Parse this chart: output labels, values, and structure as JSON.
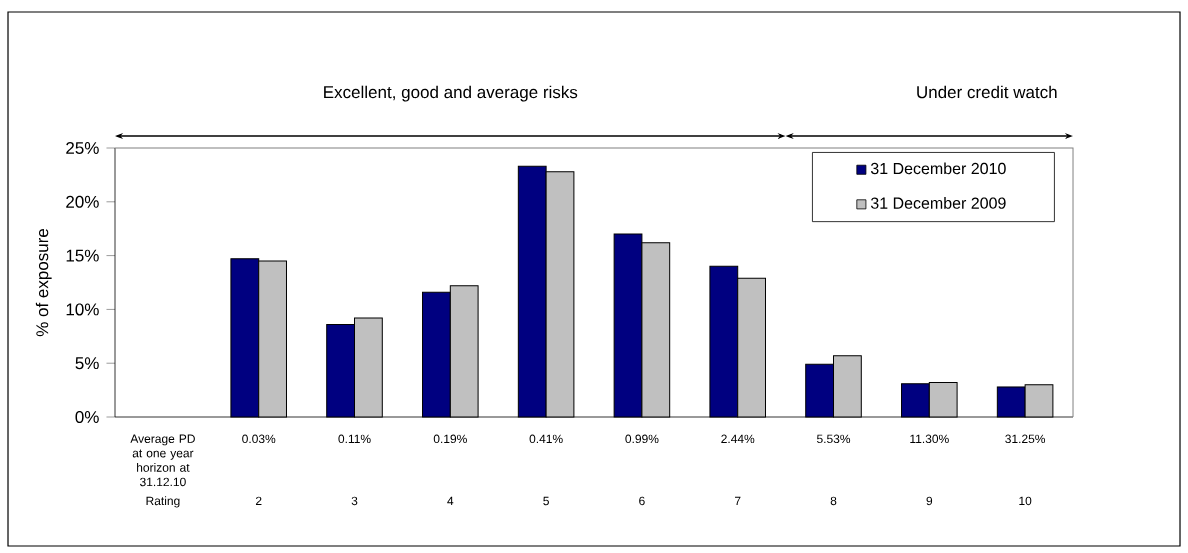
{
  "chart_data": {
    "type": "bar",
    "ylabel": "% of exposure",
    "categories": [
      "Average PD at one year horizon at 31.12.10",
      "0.03%",
      "0.11%",
      "0.19%",
      "0.41%",
      "0.99%",
      "2.44%",
      "5.53%",
      "11.30%",
      "31.25%"
    ],
    "series": [
      {
        "name": "31 December 2010",
        "color": "#000080",
        "values": [
          null,
          14.7,
          8.6,
          11.6,
          23.3,
          17.0,
          14.0,
          4.9,
          3.1,
          2.8
        ]
      },
      {
        "name": "31 December 2009",
        "color": "#c0c0c0",
        "values": [
          null,
          14.5,
          9.2,
          12.2,
          22.8,
          16.2,
          12.9,
          5.7,
          3.2,
          3.0
        ]
      }
    ],
    "ylim": [
      0,
      25
    ],
    "yticks": [
      {
        "value": 0,
        "label": "0%"
      },
      {
        "value": 5,
        "label": "5%"
      },
      {
        "value": 10,
        "label": "10%"
      },
      {
        "value": 15,
        "label": "15%"
      },
      {
        "value": 20,
        "label": "20%"
      },
      {
        "value": 25,
        "label": "25%"
      }
    ],
    "legend": "top right",
    "annotations": [
      "Excellent, good and average risks",
      "Under credit watch",
      "Rating",
      "2",
      "3",
      "4",
      "5",
      "6",
      "7",
      "8",
      "9",
      "10"
    ]
  }
}
